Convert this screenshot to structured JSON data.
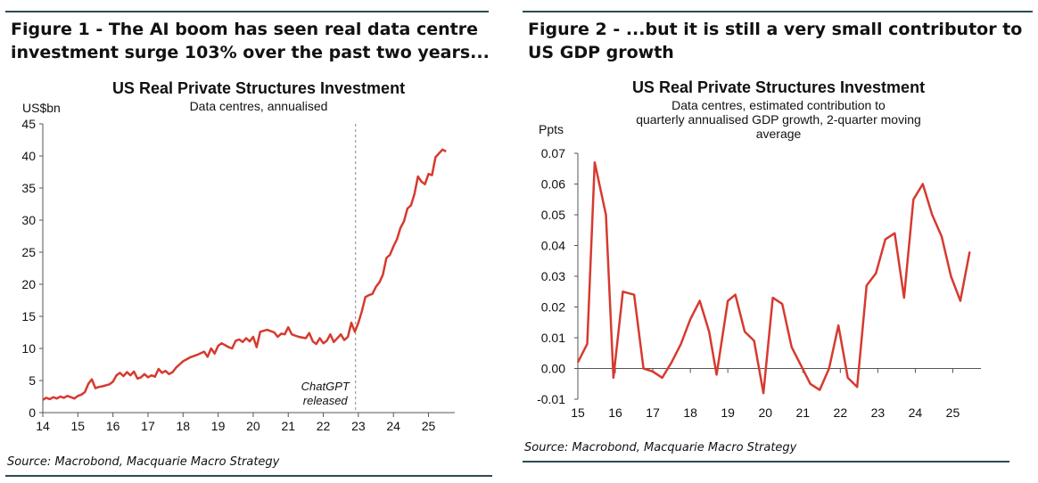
{
  "figure1": {
    "heading_line1": "Figure 1 - The AI boom has seen real data centre",
    "heading_line2": "investment surge 103% over the past two years...",
    "source": "Source: Macrobond, Macquarie Macro Strategy"
  },
  "figure2": {
    "heading_line1": "Figure 2 - ...but it is still a very small contributor to",
    "heading_line2": "US GDP growth",
    "source": "Source: Macrobond, Macquarie Macro Strategy"
  },
  "chart_data": [
    {
      "type": "line",
      "title": "US Real Private Structures Investment",
      "subtitle": "Data centres, annualised",
      "ylabel": "US$bn",
      "xlabel": "",
      "xlim": [
        14,
        25.75
      ],
      "ylim": [
        0,
        45
      ],
      "yticks": [
        0,
        5,
        10,
        15,
        20,
        25,
        30,
        35,
        40,
        45
      ],
      "xtick_labels": [
        "14",
        "15",
        "16",
        "17",
        "18",
        "19",
        "20",
        "21",
        "22",
        "23",
        "24",
        "25"
      ],
      "series_color": "#d63a2f",
      "annotation": {
        "text_line1": "ChatGPT",
        "text_line2": "released",
        "x": 22.92
      },
      "series": [
        {
          "name": "Data centres",
          "x": [
            14.0,
            14.1,
            14.2,
            14.3,
            14.4,
            14.5,
            14.6,
            14.7,
            14.8,
            14.9,
            15.0,
            15.1,
            15.2,
            15.3,
            15.4,
            15.5,
            15.6,
            15.7,
            15.9,
            16.0,
            16.1,
            16.2,
            16.3,
            16.4,
            16.5,
            16.6,
            16.7,
            16.8,
            16.9,
            17.0,
            17.1,
            17.2,
            17.3,
            17.4,
            17.5,
            17.6,
            17.7,
            17.8,
            17.9,
            18.0,
            18.2,
            18.4,
            18.6,
            18.7,
            18.8,
            18.9,
            19.0,
            19.1,
            19.2,
            19.3,
            19.4,
            19.5,
            19.6,
            19.7,
            19.8,
            19.9,
            20.0,
            20.1,
            20.2,
            20.4,
            20.6,
            20.7,
            20.8,
            20.9,
            21.0,
            21.1,
            21.3,
            21.5,
            21.6,
            21.7,
            21.8,
            21.9,
            22.0,
            22.1,
            22.2,
            22.3,
            22.5,
            22.6,
            22.7,
            22.8,
            22.9,
            23.0,
            23.1,
            23.2,
            23.3,
            23.4,
            23.5,
            23.6,
            23.7,
            23.8,
            23.9,
            24.0,
            24.1,
            24.2,
            24.3,
            24.4,
            24.5,
            24.6,
            24.7,
            24.8,
            24.9,
            25.0,
            25.1,
            25.2,
            25.3,
            25.4,
            25.5
          ],
          "values": [
            2.0,
            2.3,
            2.1,
            2.4,
            2.2,
            2.5,
            2.3,
            2.6,
            2.4,
            2.2,
            2.6,
            2.8,
            3.2,
            4.5,
            5.2,
            3.8,
            4.0,
            4.1,
            4.4,
            4.8,
            5.8,
            6.2,
            5.7,
            6.3,
            5.8,
            6.4,
            5.3,
            5.5,
            6.0,
            5.5,
            5.8,
            5.6,
            6.8,
            6.2,
            6.5,
            6.0,
            6.3,
            7.0,
            7.5,
            8.0,
            8.6,
            9.0,
            9.5,
            8.7,
            10.0,
            9.2,
            10.4,
            10.8,
            10.5,
            10.2,
            10.0,
            11.2,
            11.4,
            11.0,
            11.6,
            11.1,
            11.8,
            10.2,
            12.6,
            12.9,
            12.5,
            11.8,
            12.3,
            12.2,
            13.3,
            12.2,
            11.8,
            11.6,
            12.4,
            11.1,
            10.7,
            11.6,
            10.8,
            11.2,
            12.2,
            11.0,
            12.2,
            11.3,
            11.8,
            14.0,
            12.6,
            14.0,
            15.8,
            18.0,
            18.3,
            18.5,
            19.6,
            20.3,
            21.5,
            24.1,
            24.6,
            25.9,
            27.0,
            28.8,
            29.8,
            31.8,
            32.3,
            34.1,
            36.8,
            36.0,
            35.6,
            37.2,
            37.0,
            39.8,
            40.4,
            41.0,
            40.7
          ]
        }
      ]
    },
    {
      "type": "line",
      "title": "US Real Private Structures Investment",
      "subtitle": "Data centres, estimated contribution to quarterly annualised GDP growth, 2-quarter moving average",
      "subtitle_lines": [
        "Data centres, estimated  contribution to",
        "quarterly annualised  GDP growth,  2-quarter moving",
        "average"
      ],
      "ylabel": "Ppts",
      "xlabel": "",
      "xlim": [
        15,
        25.75
      ],
      "ylim": [
        -0.01,
        0.07
      ],
      "ytick_labels": [
        "0.07",
        "0.06",
        "0.05",
        "0.04",
        "0.03",
        "0.02",
        "0.01",
        "0.00",
        "-0.01"
      ],
      "yticks": [
        0.07,
        0.06,
        0.05,
        0.04,
        0.03,
        0.02,
        0.01,
        0.0,
        -0.01
      ],
      "xtick_labels": [
        "15",
        "16",
        "17",
        "18",
        "19",
        "20",
        "21",
        "22",
        "23",
        "24",
        "25"
      ],
      "series_color": "#d63a2f",
      "series": [
        {
          "name": "Data centres contribution",
          "x": [
            15.0,
            15.25,
            15.45,
            15.75,
            15.95,
            16.2,
            16.5,
            16.75,
            17.0,
            17.25,
            17.5,
            17.75,
            18.0,
            18.25,
            18.5,
            18.7,
            19.0,
            19.2,
            19.45,
            19.7,
            19.95,
            20.2,
            20.45,
            20.7,
            20.95,
            21.2,
            21.45,
            21.7,
            21.95,
            22.2,
            22.45,
            22.7,
            22.95,
            23.2,
            23.45,
            23.7,
            23.95,
            24.2,
            24.45,
            24.7,
            24.95,
            25.2,
            25.45
          ],
          "values": [
            0.002,
            0.008,
            0.067,
            0.05,
            -0.003,
            0.025,
            0.024,
            0.0,
            -0.001,
            -0.003,
            0.002,
            0.008,
            0.016,
            0.022,
            0.012,
            -0.002,
            0.022,
            0.024,
            0.012,
            0.009,
            -0.008,
            0.023,
            0.021,
            0.007,
            0.001,
            -0.005,
            -0.007,
            0.0,
            0.014,
            -0.003,
            -0.006,
            0.027,
            0.031,
            0.042,
            0.044,
            0.023,
            0.055,
            0.06,
            0.05,
            0.043,
            0.03,
            0.022,
            0.038
          ]
        }
      ]
    }
  ]
}
